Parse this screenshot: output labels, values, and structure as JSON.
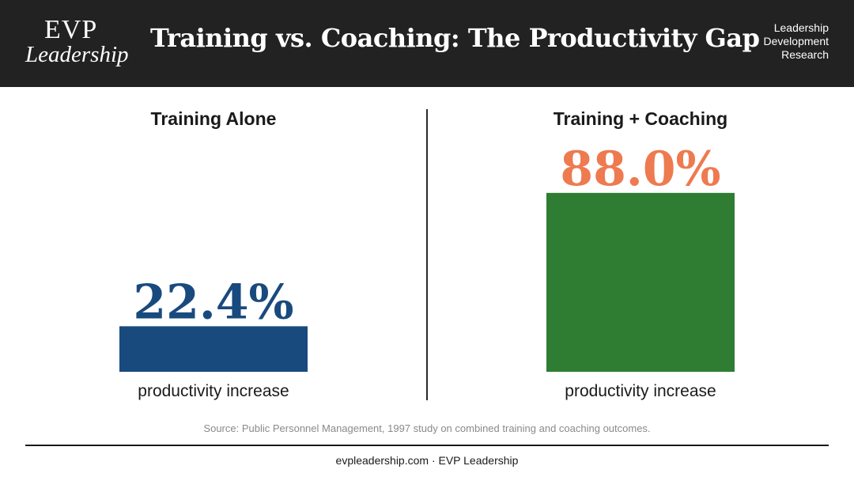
{
  "header": {
    "logo_main": "EVP",
    "logo_sub": "Leadership",
    "title": "Training vs. Coaching: The Productivity Gap",
    "tag_lines": [
      "Leadership",
      "Development",
      "Research"
    ]
  },
  "chart_data": {
    "type": "bar",
    "title": "Training vs. Coaching: The Productivity Gap",
    "categories": [
      "Training Alone",
      "Training + Coaching"
    ],
    "values": [
      22.4,
      88.0
    ],
    "value_labels": [
      "22.4%",
      "88.0%"
    ],
    "sublabel": "productivity increase",
    "ylim": [
      0,
      100
    ],
    "grid": false,
    "colors": {
      "bars": [
        "#194a7e",
        "#2e7d32"
      ],
      "value_labels": [
        "#194a7e",
        "#ee7a50"
      ]
    }
  },
  "source": "Source: Public Personnel Management, 1997 study on combined training and coaching outcomes.",
  "footer": "evpleadership.com · EVP Leadership"
}
